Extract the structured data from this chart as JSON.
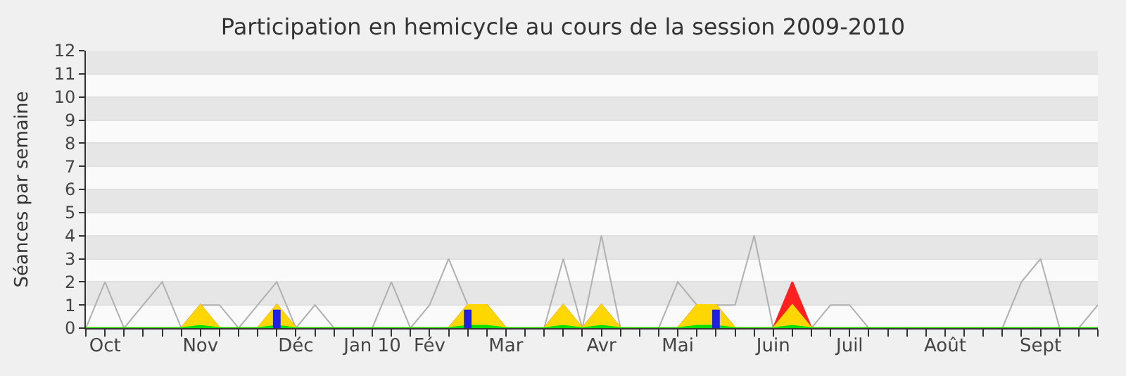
{
  "chart_data": {
    "type": "area",
    "title": "Participation en hemicycle au cours de la session 2009-2010",
    "ylabel": "Séances par semaine",
    "categories": [
      null,
      "Oct",
      null,
      null,
      null,
      null,
      "Nov",
      null,
      null,
      null,
      null,
      "Déc",
      null,
      null,
      null,
      "Jan 10",
      null,
      null,
      "Fév",
      null,
      null,
      null,
      "Mar",
      null,
      null,
      null,
      null,
      "Avr",
      null,
      null,
      null,
      "Mai",
      null,
      null,
      null,
      null,
      "Juin",
      null,
      null,
      null,
      "Juil",
      null,
      null,
      null,
      null,
      "Août",
      null,
      null,
      null,
      null,
      "Sept",
      null,
      null,
      null
    ],
    "ylim": [
      0,
      12
    ],
    "yticks": [
      0,
      1,
      2,
      3,
      4,
      5,
      6,
      7,
      8,
      9,
      10,
      11,
      12
    ],
    "grid": "y",
    "series": [
      {
        "type": "line",
        "color": "#b0b0b0",
        "values": [
          0,
          2,
          0,
          1,
          2,
          0,
          1,
          1,
          0,
          1,
          2,
          0,
          1,
          0,
          0,
          0,
          2,
          0,
          1,
          3,
          1,
          null,
          0,
          0,
          0,
          3,
          0,
          4,
          0,
          0,
          0,
          2,
          1,
          1,
          1,
          4,
          0,
          null,
          0,
          1,
          1,
          0,
          0,
          0,
          0,
          0,
          0,
          0,
          0,
          2,
          3,
          0,
          0,
          1
        ]
      },
      {
        "color": "#ff2020",
        "values": [
          0,
          0,
          0,
          0,
          0,
          0,
          1,
          0,
          0,
          0,
          1,
          0,
          0,
          0,
          0,
          0,
          0,
          0,
          0,
          0,
          1,
          1,
          0,
          0,
          0,
          1,
          0,
          1,
          0,
          0,
          0,
          0,
          1,
          1,
          0,
          0,
          0,
          2,
          0,
          0,
          0,
          0,
          0,
          0,
          0,
          0,
          0,
          0,
          0,
          0,
          0,
          0,
          0,
          0
        ]
      },
      {
        "color": "#ffd700",
        "values": [
          0,
          0,
          0,
          0,
          0,
          0,
          1,
          0,
          0,
          0,
          1,
          0,
          0,
          0,
          0,
          0,
          0,
          0,
          0,
          0,
          1,
          1,
          0,
          0,
          0,
          1,
          0,
          1,
          0,
          0,
          0,
          0,
          1,
          1,
          0,
          0,
          0,
          1,
          0,
          0,
          0,
          0,
          0,
          0,
          0,
          0,
          0,
          0,
          0,
          0,
          0,
          0,
          0,
          0
        ]
      },
      {
        "color": "#00e000",
        "values": [
          0,
          0,
          0,
          0,
          0,
          0,
          0.1,
          0,
          0,
          0,
          0.1,
          0,
          0,
          0,
          0,
          0,
          0,
          0,
          0,
          0,
          0.1,
          0.1,
          0,
          0,
          0,
          0.1,
          0,
          0.1,
          0,
          0,
          0,
          0,
          0.1,
          0.1,
          0,
          0,
          0,
          0.1,
          0,
          0,
          0,
          0,
          0,
          0,
          0,
          0,
          0,
          0,
          0,
          0,
          0,
          0,
          0,
          0
        ]
      },
      {
        "type": "bar",
        "color": "#2020e0",
        "values": [
          0,
          0,
          0,
          0,
          0,
          0,
          0,
          0,
          0,
          0,
          0.8,
          0,
          0,
          0,
          0,
          0,
          0,
          0,
          0,
          0,
          0.8,
          0,
          0,
          0,
          0,
          0,
          0,
          0,
          0,
          0,
          0,
          0,
          0,
          0.8,
          0,
          0,
          0,
          0,
          0,
          0,
          0,
          0,
          0,
          0,
          0,
          0,
          0,
          0,
          0,
          0,
          0,
          0,
          0,
          0
        ]
      }
    ]
  }
}
